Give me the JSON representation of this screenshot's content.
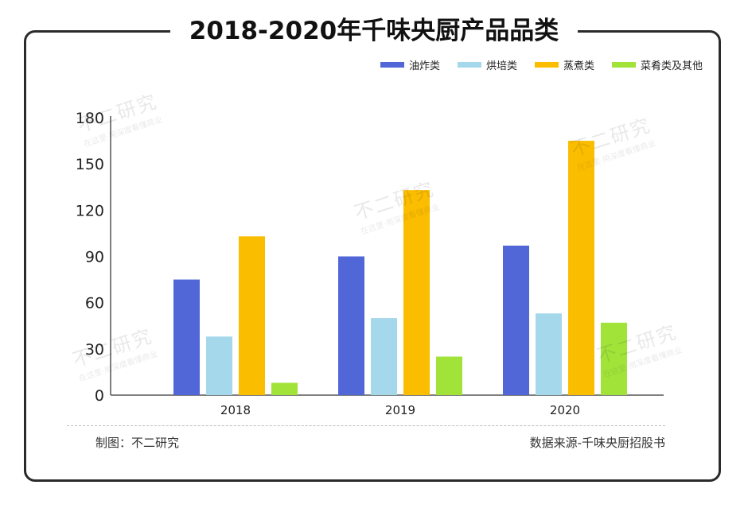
{
  "title": "2018-2020年千味央厨产品品类",
  "footer": {
    "made_by": "制图：不二研究",
    "source": "数据来源-千味央厨招股书"
  },
  "watermark": {
    "main": "不二研究",
    "sub": "在这里·用深度看懂商业"
  },
  "colors": {
    "series": [
      "#5167d8",
      "#a5d8eb",
      "#fbbd00",
      "#a2e33a"
    ]
  },
  "chart_data": {
    "type": "bar",
    "categories": [
      "2018",
      "2019",
      "2020"
    ],
    "series": [
      {
        "name": "油炸类",
        "values": [
          75,
          90,
          97
        ]
      },
      {
        "name": "烘培类",
        "values": [
          38,
          50,
          53
        ]
      },
      {
        "name": "蒸煮类",
        "values": [
          103,
          133,
          165
        ]
      },
      {
        "name": "菜肴类及其他",
        "values": [
          8,
          25,
          47
        ]
      }
    ],
    "yticks": [
      "0",
      "30",
      "60",
      "90",
      "120",
      "150",
      "180"
    ],
    "ylim": [
      0,
      180
    ],
    "grid": false,
    "legend_position": "top-right"
  }
}
